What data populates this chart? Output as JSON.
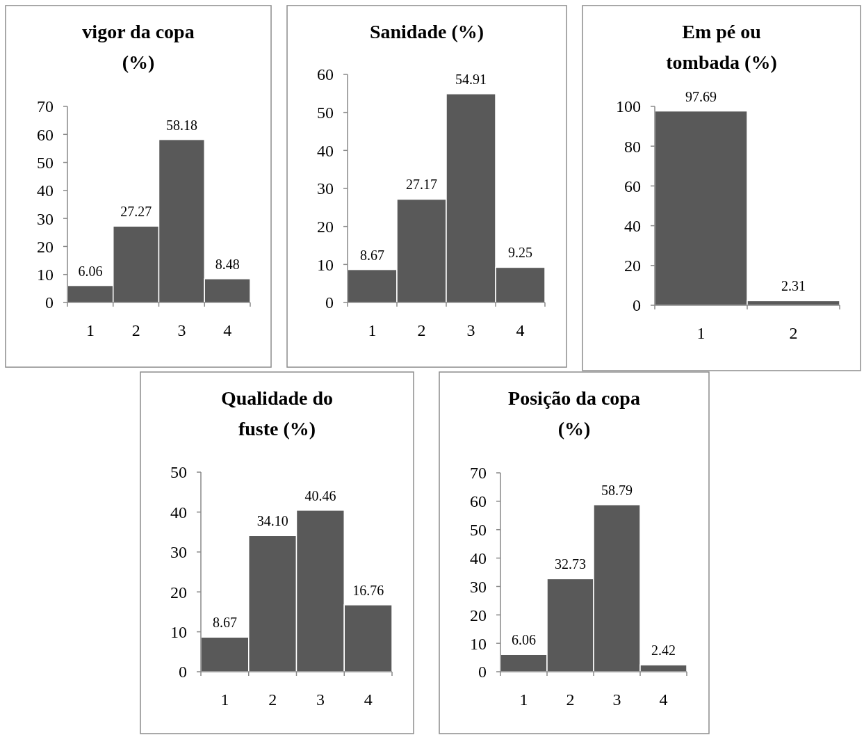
{
  "chart_data": [
    {
      "type": "bar",
      "title": "vigor da copa\n(%)",
      "categories": [
        "1",
        "2",
        "3",
        "4"
      ],
      "values": [
        6.06,
        27.27,
        58.18,
        8.48
      ],
      "value_labels": [
        "6.06",
        "27.27",
        "58.18",
        "8.48"
      ],
      "color": "#595959",
      "ylim": [
        0,
        70
      ],
      "yticks": [
        0,
        10,
        20,
        30,
        40,
        50,
        60,
        70
      ]
    },
    {
      "type": "bar",
      "title": "Sanidade (%)",
      "categories": [
        "1",
        "2",
        "3",
        "4"
      ],
      "values": [
        8.67,
        27.17,
        54.91,
        9.25
      ],
      "value_labels": [
        "8.67",
        "27.17",
        "54.91",
        "9.25"
      ],
      "color": "#595959",
      "ylim": [
        0,
        60
      ],
      "yticks": [
        0,
        10,
        20,
        30,
        40,
        50,
        60
      ]
    },
    {
      "type": "bar",
      "title": "Em pé ou\ntombada (%)",
      "categories": [
        "1",
        "2"
      ],
      "values": [
        97.69,
        2.31
      ],
      "value_labels": [
        "97.69",
        "2.31"
      ],
      "color": "#595959",
      "ylim": [
        0,
        100
      ],
      "yticks": [
        0,
        20,
        40,
        60,
        80,
        100
      ]
    },
    {
      "type": "bar",
      "title": "Qualidade do\nfuste (%)",
      "categories": [
        "1",
        "2",
        "3",
        "4"
      ],
      "values": [
        8.67,
        34.1,
        40.46,
        16.76
      ],
      "value_labels": [
        "8.67",
        "34.10",
        "40.46",
        "16.76"
      ],
      "color": "#595959",
      "ylim": [
        0,
        50
      ],
      "yticks": [
        0,
        10,
        20,
        30,
        40,
        50
      ]
    },
    {
      "type": "bar",
      "title": "Posição da copa\n(%)",
      "categories": [
        "1",
        "2",
        "3",
        "4"
      ],
      "values": [
        6.06,
        32.73,
        58.79,
        2.42
      ],
      "value_labels": [
        "6.06",
        "32.73",
        "58.79",
        "2.42"
      ],
      "color": "#595959",
      "ylim": [
        0,
        70
      ],
      "yticks": [
        0,
        10,
        20,
        30,
        40,
        50,
        60,
        70
      ]
    }
  ]
}
